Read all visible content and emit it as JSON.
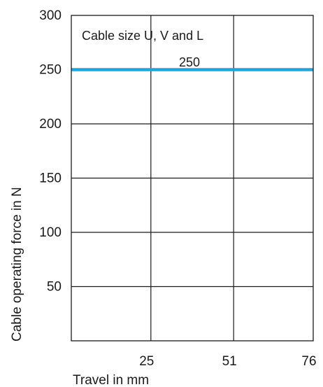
{
  "chart_data": {
    "type": "line",
    "title": "",
    "xlabel": "Travel in mm",
    "ylabel": "Cable operating force in N",
    "xlim": [
      0,
      76
    ],
    "ylim": [
      0,
      300
    ],
    "x_ticks": [
      25,
      51,
      76
    ],
    "y_ticks": [
      50,
      100,
      150,
      200,
      250,
      300
    ],
    "grid": true,
    "series": [
      {
        "name": "Cable size U, V and L",
        "x": [
          0,
          76
        ],
        "values": [
          250,
          250
        ],
        "color": "#1aa7dd",
        "label": "250"
      }
    ]
  }
}
